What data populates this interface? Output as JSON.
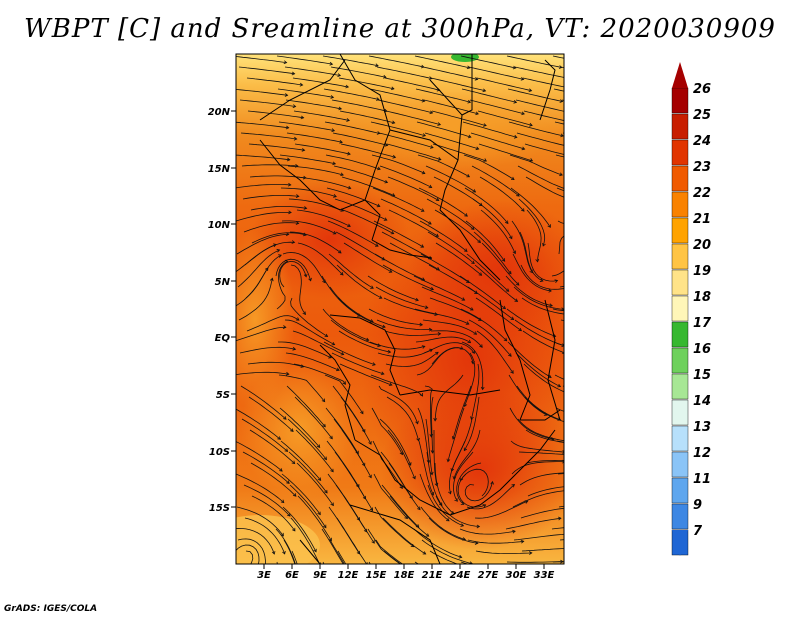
{
  "title": "WBPT [C] and Sreamline at 300hPa, VT: 2020030909",
  "credit": "GrADS: IGES/COLA",
  "map": {
    "lat_labels": [
      "20N",
      "15N",
      "10N",
      "5N",
      "EQ",
      "5S",
      "10S",
      "15S"
    ],
    "lon_labels": [
      "3E",
      "6E",
      "9E",
      "12E",
      "15E",
      "18E",
      "21E",
      "24E",
      "27E",
      "30E",
      "33E"
    ]
  },
  "colorbar": {
    "levels": [
      "26",
      "25",
      "24",
      "23",
      "22",
      "21",
      "20",
      "19",
      "18",
      "17",
      "16",
      "15",
      "14",
      "13",
      "12",
      "11",
      "9",
      "7"
    ],
    "colors": [
      "#a50000",
      "#c81e00",
      "#e13500",
      "#f05a00",
      "#f98200",
      "#ffa300",
      "#ffc444",
      "#ffe388",
      "#fff6b8",
      "#37b830",
      "#6ed15c",
      "#a7e795",
      "#e2f6ee",
      "#b7e0fb",
      "#8ac4f7",
      "#5ea6ee",
      "#3d87e3",
      "#1f66d4"
    ]
  },
  "colors": {
    "cool": "#ffe27a",
    "mid": "#f6991a",
    "warm": "#ef5a0c",
    "hot": "#e6390a",
    "line": "#111111"
  }
}
